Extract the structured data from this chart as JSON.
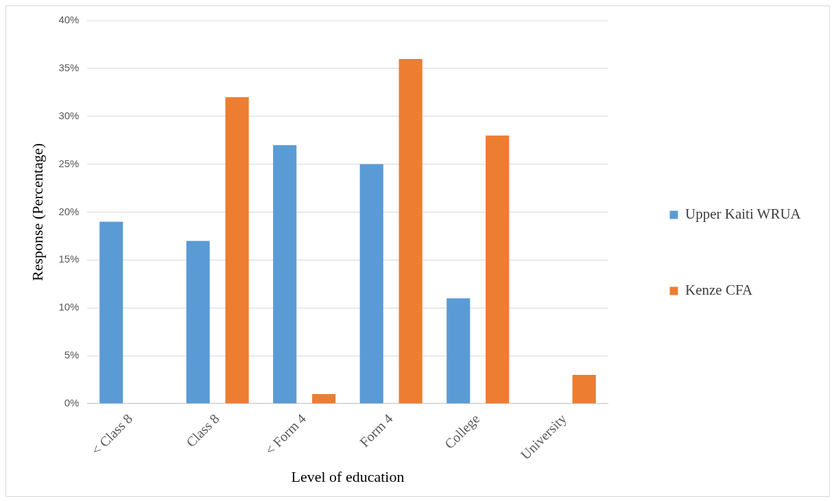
{
  "chart_data": {
    "type": "bar",
    "xlabel": "Level of education",
    "ylabel": "Response (Percentage)",
    "categories": [
      "< Class 8",
      "Class 8",
      "< Form 4",
      "Form 4",
      "College",
      "University"
    ],
    "series": [
      {
        "name": "Upper Kaiti WRUA",
        "color": "#5b9bd5",
        "values": [
          19,
          17,
          27,
          25,
          11,
          0
        ]
      },
      {
        "name": "Kenze CFA",
        "color": "#ed7d31",
        "values": [
          0,
          32,
          1,
          36,
          28,
          3
        ]
      }
    ],
    "ylim": [
      0,
      40
    ],
    "yticks": [
      {
        "value": 0,
        "label": "0%"
      },
      {
        "value": 5,
        "label": "5%"
      },
      {
        "value": 10,
        "label": "10%"
      },
      {
        "value": 15,
        "label": "15%"
      },
      {
        "value": 20,
        "label": "20%"
      },
      {
        "value": 25,
        "label": "25%"
      },
      {
        "value": 30,
        "label": "30%"
      },
      {
        "value": 35,
        "label": "35%"
      },
      {
        "value": 40,
        "label": "40%"
      }
    ],
    "grid": "y",
    "legend": "right"
  }
}
